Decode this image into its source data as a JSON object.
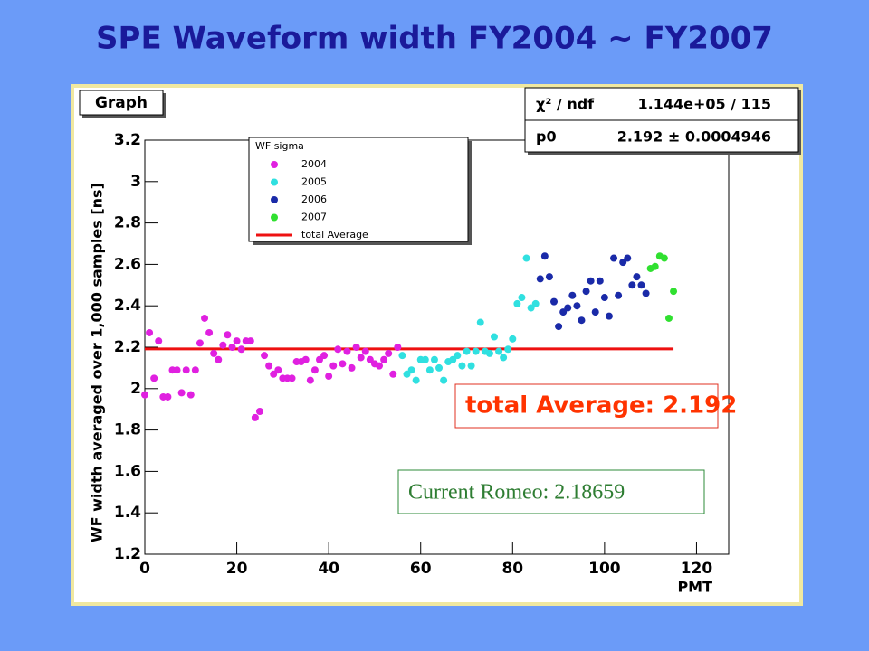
{
  "chart_data": {
    "type": "scatter",
    "title": "SPE Waveform width FY2004 ~ FY2007",
    "panel_label": "Graph",
    "xlabel": "PMT",
    "ylabel": "WF width averaged over 1,000 samples [ns]",
    "legend_title": "WF sigma",
    "legend": "top-left",
    "xlim": [
      0,
      127
    ],
    "ylim": [
      1.2,
      3.2
    ],
    "xticks": [
      0,
      20,
      40,
      60,
      80,
      100,
      120
    ],
    "yticks": [
      1.2,
      1.4,
      1.6,
      1.8,
      2,
      2.2,
      2.4,
      2.6,
      2.8,
      3,
      3.2
    ],
    "series": [
      {
        "name": "2004",
        "color": "#e020e0",
        "x": [
          0,
          1,
          2,
          3,
          4,
          5,
          6,
          7,
          8,
          9,
          10,
          11,
          12,
          13,
          14,
          15,
          16,
          17,
          18,
          19,
          20,
          21,
          22,
          23,
          24,
          25,
          26,
          27,
          28,
          29,
          30,
          31,
          32,
          33,
          34,
          35,
          36,
          37,
          38,
          39,
          40,
          41,
          42,
          43,
          44,
          45,
          46,
          47,
          48,
          49,
          50,
          51,
          52,
          53,
          54,
          55
        ],
        "values": [
          1.97,
          2.27,
          2.05,
          2.23,
          1.96,
          1.96,
          2.09,
          2.09,
          1.98,
          2.09,
          1.97,
          2.09,
          2.22,
          2.34,
          2.27,
          2.17,
          2.14,
          2.21,
          2.26,
          2.2,
          2.23,
          2.19,
          2.23,
          2.23,
          1.86,
          1.89,
          2.16,
          2.11,
          2.07,
          2.09,
          2.05,
          2.05,
          2.05,
          2.13,
          2.13,
          2.14,
          2.04,
          2.09,
          2.14,
          2.16,
          2.06,
          2.11,
          2.19,
          2.12,
          2.18,
          2.1,
          2.2,
          2.15,
          2.18,
          2.14,
          2.12,
          2.11,
          2.14,
          2.17,
          2.07,
          2.2
        ]
      },
      {
        "name": "2005",
        "color": "#30e0e0",
        "x": [
          56,
          57,
          58,
          59,
          60,
          61,
          62,
          63,
          64,
          65,
          66,
          67,
          68,
          69,
          70,
          71,
          72,
          73,
          74,
          75,
          76,
          77,
          78,
          79,
          80,
          81,
          82,
          83,
          84,
          85
        ],
        "values": [
          2.16,
          2.07,
          2.09,
          2.04,
          2.14,
          2.14,
          2.09,
          2.14,
          2.1,
          2.04,
          2.13,
          2.14,
          2.16,
          2.11,
          2.18,
          2.11,
          2.18,
          2.32,
          2.18,
          2.17,
          2.25,
          2.18,
          2.15,
          2.19,
          2.24,
          2.41,
          2.44,
          2.63,
          2.39,
          2.41
        ]
      },
      {
        "name": "2006",
        "color": "#1a2aa8",
        "x": [
          86,
          87,
          88,
          89,
          90,
          91,
          92,
          93,
          94,
          95,
          96,
          97,
          98,
          99,
          100,
          101,
          102,
          103,
          104,
          105,
          106,
          107,
          108,
          109
        ],
        "values": [
          2.53,
          2.64,
          2.54,
          2.42,
          2.3,
          2.37,
          2.39,
          2.45,
          2.4,
          2.33,
          2.47,
          2.52,
          2.37,
          2.52,
          2.44,
          2.35,
          2.63,
          2.45,
          2.61,
          2.63,
          2.5,
          2.54,
          2.5,
          2.46
        ]
      },
      {
        "name": "2007",
        "color": "#30e030",
        "x": [
          110,
          111,
          112,
          113,
          114,
          115
        ],
        "values": [
          2.58,
          2.59,
          2.64,
          2.63,
          2.34,
          2.47
        ]
      }
    ],
    "fit": {
      "name": "total Average",
      "color": "#ee1111",
      "value": 2.192,
      "x": [
        0,
        115
      ]
    },
    "stats": [
      [
        "χ² / ndf",
        "1.144e+05 / 115"
      ],
      [
        "p0",
        "2.192 ± 0.0004946"
      ]
    ],
    "annotations": [
      "total Average: 2.192",
      "Current Romeo: 2.18659"
    ]
  }
}
